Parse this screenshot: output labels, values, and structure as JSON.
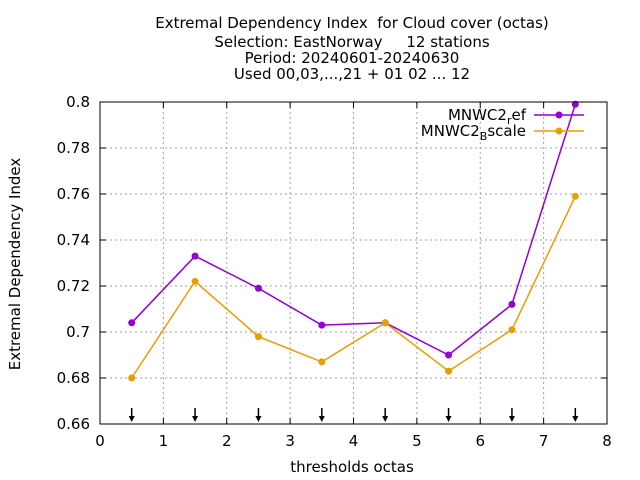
{
  "chart_data": {
    "type": "line",
    "title_lines": [
      "Extremal Dependency Index  for Cloud cover (octas)",
      "Selection: EastNorway     12 stations",
      "Period: 20240601-20240630",
      "Used 00,03,...,21 + 01 02 ... 12"
    ],
    "xlabel": "thresholds octas",
    "ylabel": "Extremal Dependency Index",
    "xlim": [
      0,
      8
    ],
    "ylim": [
      0.66,
      0.8
    ],
    "xticks": [
      "0",
      "1",
      "2",
      "3",
      "4",
      "5",
      "6",
      "7",
      "8"
    ],
    "yticks": [
      "0.66",
      "0.68",
      "0.7",
      "0.72",
      "0.74",
      "0.76",
      "0.78",
      "0.8"
    ],
    "grid": true,
    "legend_position": "top-right",
    "x": [
      0.5,
      1.5,
      2.5,
      3.5,
      4.5,
      5.5,
      6.5,
      7.5
    ],
    "series": [
      {
        "name_main": "MNWC2",
        "name_sub": "r",
        "name_rest": "ef",
        "color": "#9400d3",
        "values": [
          0.704,
          0.733,
          0.719,
          0.703,
          0.704,
          0.69,
          0.712,
          0.799
        ]
      },
      {
        "name_main": "MNWC2",
        "name_sub": "B",
        "name_rest": "scale",
        "color": "#e69f00",
        "values": [
          0.68,
          0.722,
          0.698,
          0.687,
          0.704,
          0.683,
          0.701,
          0.759
        ]
      }
    ],
    "arrow_x": [
      0.5,
      1.5,
      2.5,
      3.5,
      4.5,
      5.5,
      6.5,
      7.5
    ]
  }
}
